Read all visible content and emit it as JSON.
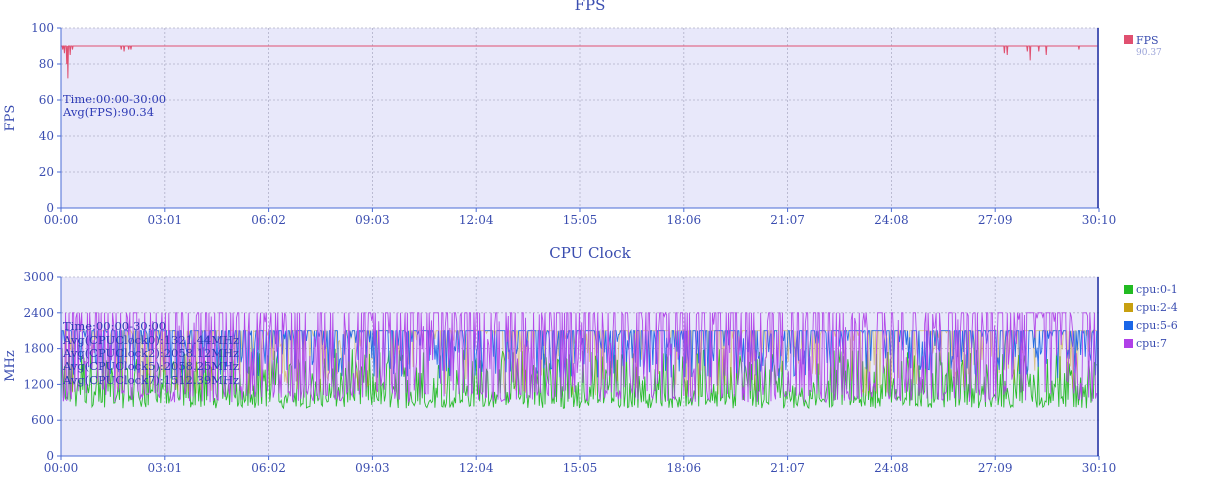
{
  "chart_data": [
    {
      "type": "line",
      "title": "FPS",
      "ylabel": "FPS",
      "ylim": [
        0,
        100
      ],
      "yticks": [
        0,
        20,
        40,
        60,
        80,
        100
      ],
      "xlim_seconds": [
        0,
        1810
      ],
      "xticks": [
        "00:00",
        "03:01",
        "06:02",
        "09:03",
        "12:04",
        "15:05",
        "18:06",
        "21:07",
        "24:08",
        "27:09",
        "30:10"
      ],
      "grid": true,
      "legend_position": "right",
      "series": [
        {
          "name": "FPS",
          "color": "#e05070",
          "legend_value": "90.37",
          "baseline": 90,
          "dips": [
            [
              3,
              88
            ],
            [
              6,
              86
            ],
            [
              10,
              80
            ],
            [
              12,
              72
            ],
            [
              16,
              85
            ],
            [
              20,
              88
            ],
            [
              105,
              88
            ],
            [
              110,
              87
            ],
            [
              118,
              88
            ],
            [
              122,
              88
            ],
            [
              1645,
              86
            ],
            [
              1650,
              85
            ],
            [
              1685,
              87
            ],
            [
              1690,
              82
            ],
            [
              1705,
              87
            ],
            [
              1718,
              85
            ],
            [
              1775,
              88
            ]
          ]
        }
      ],
      "annotations": [
        "Time:00:00-30:00",
        "Avg(FPS):90.34"
      ]
    },
    {
      "type": "line",
      "title": "CPU Clock",
      "ylabel": "MHz",
      "ylim": [
        0,
        3000
      ],
      "yticks": [
        0,
        600,
        1200,
        1800,
        2400,
        3000
      ],
      "xlim_seconds": [
        0,
        1810
      ],
      "xticks": [
        "00:00",
        "03:01",
        "06:02",
        "09:03",
        "12:04",
        "15:05",
        "18:06",
        "21:07",
        "24:08",
        "27:09",
        "30:10"
      ],
      "grid": true,
      "legend_position": "right",
      "series": [
        {
          "name": "cpu:0-1",
          "color": "#22bb22",
          "min": 800,
          "max": 1800,
          "avg": 1321.44
        },
        {
          "name": "cpu:2-4",
          "color": "#c8a010",
          "min": 1000,
          "max": 2100,
          "avg": 2058.12
        },
        {
          "name": "cpu:5-6",
          "color": "#1a66e8",
          "min": 1300,
          "max": 2100,
          "avg": 2058.25
        },
        {
          "name": "cpu:7",
          "color": "#b040e8",
          "min": 900,
          "max": 2400,
          "avg": 1512.39
        }
      ],
      "annotations": [
        "Time:00:00-30:00",
        "Avg(CPUClock0):1321.44MHz",
        "Avg(CPUClock2):2058.12MHz",
        "Avg(CPUClock5):2058.25MHz",
        "Avg(CPUClock7):1512.39MHz"
      ]
    }
  ]
}
